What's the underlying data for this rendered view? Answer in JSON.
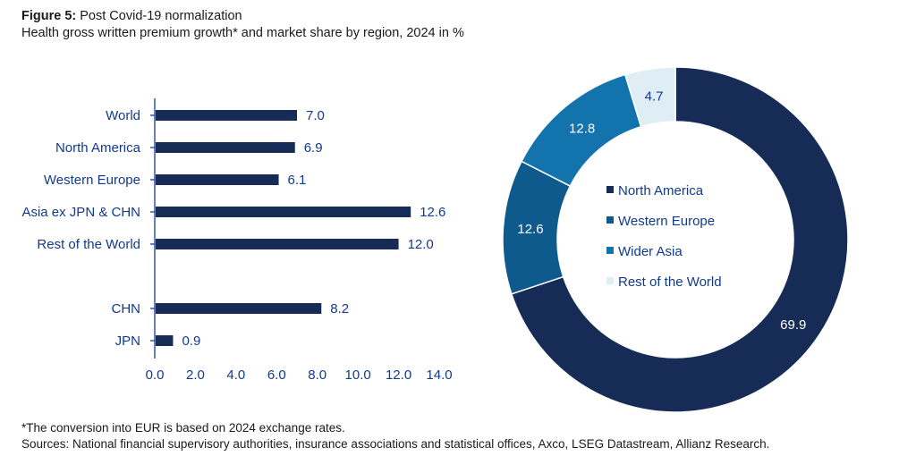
{
  "header": {
    "figure_label": "Figure 5:",
    "figure_title": "Post Covid-19 normalization",
    "subtitle": "Health gross written premium growth* and market share by region, 2024 in %"
  },
  "colors": {
    "navy": "#162c56",
    "dark_blue": "#0f5a8c",
    "mid_blue": "#1373ad",
    "pale": "#dfeef5",
    "label_blue": "#123a8c",
    "axis": "#1a3c8c"
  },
  "chart_data": [
    {
      "type": "bar",
      "orientation": "horizontal",
      "title": "Health gross written premium growth* 2024 in %",
      "categories": [
        "World",
        "North America",
        "Western Europe",
        "Asia ex JPN & CHN",
        "Rest of the World",
        "CHN",
        "JPN"
      ],
      "values": [
        7.0,
        6.9,
        6.1,
        12.6,
        12.0,
        8.2,
        0.9
      ],
      "value_labels": [
        "7.0",
        "6.9",
        "6.1",
        "12.6",
        "12.0",
        "8.2",
        "0.9"
      ],
      "gap_after_index": 4,
      "xlim": [
        0,
        14
      ],
      "x_ticks": [
        "0.0",
        "2.0",
        "4.0",
        "6.0",
        "8.0",
        "10.0",
        "12.0",
        "14.0"
      ],
      "grid": false
    },
    {
      "type": "pie",
      "variant": "donut",
      "title": "Health market share by region 2024 in %",
      "labels": [
        "North America",
        "Western Europe",
        "Wider Asia",
        "Rest of the World"
      ],
      "values": [
        69.9,
        12.6,
        12.8,
        4.7
      ],
      "value_labels": [
        "69.9",
        "12.6",
        "12.8",
        "4.7"
      ],
      "legend_position": "center"
    }
  ],
  "footer": {
    "note": "*The conversion into EUR is based on 2024 exchange rates.",
    "sources": "Sources: National financial supervisory authorities, insurance associations and statistical offices, Axco, LSEG Datastream, Allianz Research."
  }
}
